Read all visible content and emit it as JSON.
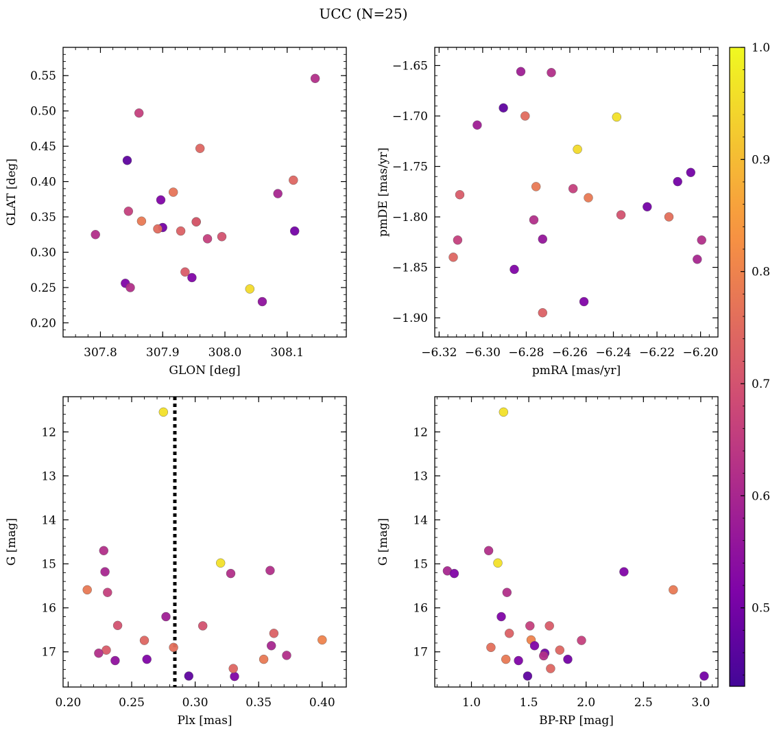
{
  "figure": {
    "title": "UCC (N=25)"
  },
  "colorbar": {
    "range": [
      0.43,
      1.0
    ],
    "ticks": [
      0.5,
      0.6,
      0.7,
      0.8,
      0.9,
      1.0
    ],
    "tick_labels": [
      "0.5",
      "0.6",
      "0.7",
      "0.8",
      "0.9",
      "1.0"
    ],
    "colormap": "plasma"
  },
  "chart_data": [
    {
      "id": "glon-glat",
      "type": "scatter",
      "xlabel": "GLON [deg]",
      "ylabel": "GLAT [deg]",
      "xlim": [
        307.74,
        308.195
      ],
      "ylim": [
        0.18,
        0.59
      ],
      "yinvert": false,
      "xticks": [
        307.8,
        307.9,
        308.0,
        308.1
      ],
      "xtick_labels": [
        "307.8",
        "307.9",
        "308.0",
        "308.1"
      ],
      "yticks": [
        0.2,
        0.25,
        0.3,
        0.35,
        0.4,
        0.45,
        0.5,
        0.55
      ],
      "ytick_labels": [
        "0.20",
        "0.25",
        "0.30",
        "0.35",
        "0.40",
        "0.45",
        "0.50",
        "0.55"
      ],
      "x": [
        308.145,
        307.862,
        307.96,
        307.843,
        307.917,
        308.11,
        307.897,
        308.085,
        307.845,
        307.866,
        307.9,
        307.892,
        307.954,
        307.954,
        307.929,
        307.792,
        307.972,
        307.995,
        307.84,
        307.848,
        307.936,
        307.947,
        308.04,
        308.06,
        308.112
      ],
      "y": [
        0.546,
        0.497,
        0.447,
        0.43,
        0.385,
        0.402,
        0.374,
        0.383,
        0.358,
        0.344,
        0.335,
        0.333,
        0.343,
        0.343,
        0.33,
        0.325,
        0.319,
        0.322,
        0.256,
        0.25,
        0.272,
        0.264,
        0.248,
        0.23,
        0.33
      ],
      "membership": [
        0.62,
        0.66,
        0.74,
        0.47,
        0.77,
        0.74,
        0.52,
        0.6,
        0.66,
        0.78,
        0.5,
        0.75,
        0.96,
        0.7,
        0.73,
        0.62,
        0.66,
        0.7,
        0.52,
        0.62,
        0.72,
        0.52,
        0.95,
        0.55,
        0.5
      ]
    },
    {
      "id": "pmra-pmde",
      "type": "scatter",
      "xlabel": "pmRA [mas/yr]",
      "ylabel": "pmDE [mas/yr]",
      "xlim": [
        -6.322,
        -6.192
      ],
      "ylim": [
        -1.919,
        -1.632
      ],
      "yinvert": false,
      "xticks": [
        -6.32,
        -6.3,
        -6.28,
        -6.26,
        -6.24,
        -6.22,
        -6.2
      ],
      "xtick_labels": [
        "−6.32",
        "−6.30",
        "−6.28",
        "−6.26",
        "−6.24",
        "−6.22",
        "−6.20"
      ],
      "yticks": [
        -1.9,
        -1.85,
        -1.8,
        -1.75,
        -1.7,
        -1.65
      ],
      "ytick_labels": [
        "−1.90",
        "−1.85",
        "−1.80",
        "−1.75",
        "−1.70",
        "−1.65"
      ],
      "x": [
        -6.2825,
        -6.2685,
        -6.2905,
        -6.3025,
        -6.2805,
        -6.2385,
        -6.2565,
        -6.3105,
        -6.2755,
        -6.2515,
        -6.2585,
        -6.2105,
        -6.2045,
        -6.2245,
        -6.2365,
        -6.2145,
        -6.2765,
        -6.2725,
        -6.3115,
        -6.3135,
        -6.2015,
        -6.1995,
        -6.2855,
        -6.2535,
        -6.2725
      ],
      "y": [
        -1.656,
        -1.657,
        -1.692,
        -1.709,
        -1.7,
        -1.701,
        -1.733,
        -1.778,
        -1.77,
        -1.781,
        -1.772,
        -1.765,
        -1.756,
        -1.79,
        -1.798,
        -1.8,
        -1.803,
        -1.822,
        -1.823,
        -1.84,
        -1.842,
        -1.823,
        -1.852,
        -1.884,
        -1.895
      ],
      "membership": [
        0.58,
        0.62,
        0.47,
        0.58,
        0.75,
        0.96,
        0.95,
        0.72,
        0.78,
        0.78,
        0.66,
        0.5,
        0.5,
        0.5,
        0.7,
        0.76,
        0.62,
        0.56,
        0.66,
        0.74,
        0.6,
        0.62,
        0.52,
        0.52,
        0.73
      ]
    },
    {
      "id": "plx-g",
      "type": "scatter",
      "xlabel": "Plx [mas]",
      "ylabel": "G [mag]",
      "xlim": [
        0.196,
        0.419
      ],
      "ylim": [
        17.8,
        11.2
      ],
      "yinvert": true,
      "vline": {
        "x": 0.284,
        "style": "dotted"
      },
      "xticks": [
        0.2,
        0.25,
        0.3,
        0.35,
        0.4
      ],
      "xtick_labels": [
        "0.20",
        "0.25",
        "0.30",
        "0.35",
        "0.40"
      ],
      "yticks": [
        12,
        13,
        14,
        15,
        16,
        17
      ],
      "ytick_labels": [
        "12",
        "13",
        "14",
        "15",
        "16",
        "17"
      ],
      "x": [
        0.275,
        0.228,
        0.229,
        0.215,
        0.231,
        0.32,
        0.328,
        0.359,
        0.239,
        0.277,
        0.306,
        0.362,
        0.26,
        0.283,
        0.23,
        0.224,
        0.237,
        0.262,
        0.295,
        0.331,
        0.33,
        0.354,
        0.36,
        0.372,
        0.4
      ],
      "y": [
        11.55,
        14.7,
        15.18,
        15.59,
        15.65,
        14.98,
        15.22,
        15.15,
        16.4,
        16.2,
        16.41,
        16.58,
        16.74,
        16.9,
        16.96,
        17.03,
        17.2,
        17.17,
        17.55,
        17.56,
        17.38,
        17.17,
        16.86,
        17.08,
        16.73
      ],
      "membership": [
        0.96,
        0.62,
        0.6,
        0.78,
        0.66,
        0.96,
        0.62,
        0.62,
        0.7,
        0.58,
        0.7,
        0.73,
        0.74,
        0.76,
        0.72,
        0.62,
        0.55,
        0.52,
        0.47,
        0.52,
        0.74,
        0.78,
        0.6,
        0.62,
        0.8
      ]
    },
    {
      "id": "bprp-g",
      "type": "scatter",
      "xlabel": "BP-RP [mag]",
      "ylabel": "G [mag]",
      "xlim": [
        0.68,
        3.15
      ],
      "ylim": [
        17.8,
        11.2
      ],
      "yinvert": true,
      "xticks": [
        1.0,
        1.5,
        2.0,
        2.5,
        3.0
      ],
      "xtick_labels": [
        "1.0",
        "1.5",
        "2.0",
        "2.5",
        "3.0"
      ],
      "yticks": [
        12,
        13,
        14,
        15,
        16,
        17
      ],
      "ytick_labels": [
        "12",
        "13",
        "14",
        "15",
        "16",
        "17"
      ],
      "x": [
        1.28,
        0.79,
        0.85,
        1.15,
        1.23,
        2.33,
        2.76,
        1.31,
        1.26,
        1.51,
        1.68,
        1.33,
        1.52,
        1.96,
        1.17,
        1.55,
        1.77,
        1.64,
        1.63,
        1.3,
        1.41,
        1.84,
        1.49,
        1.69,
        3.03
      ],
      "y": [
        11.55,
        15.16,
        15.22,
        14.7,
        14.98,
        15.18,
        15.59,
        15.65,
        16.2,
        16.41,
        16.41,
        16.58,
        16.73,
        16.74,
        16.9,
        16.86,
        16.96,
        17.03,
        17.09,
        17.17,
        17.2,
        17.17,
        17.55,
        17.38,
        17.55
      ],
      "membership": [
        0.96,
        0.6,
        0.52,
        0.62,
        0.96,
        0.52,
        0.78,
        0.62,
        0.52,
        0.66,
        0.72,
        0.73,
        0.8,
        0.66,
        0.76,
        0.52,
        0.74,
        0.5,
        0.62,
        0.78,
        0.52,
        0.5,
        0.47,
        0.74,
        0.5
      ]
    }
  ]
}
